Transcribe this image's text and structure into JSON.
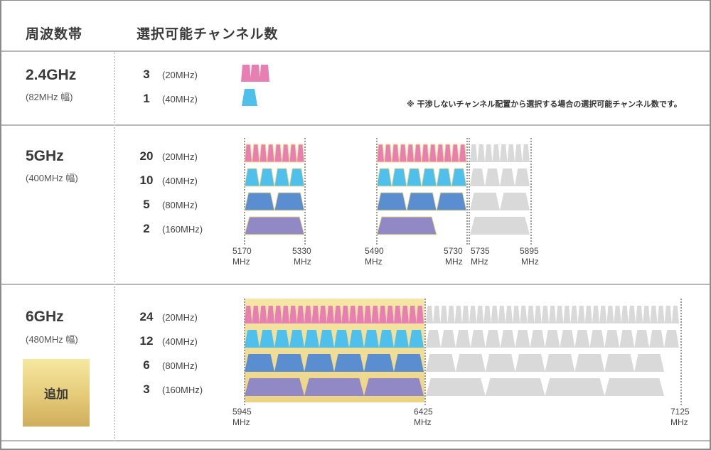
{
  "header": {
    "col_band": "周波数帯",
    "col_channels": "選択可能チャンネル数"
  },
  "note": "※ 干渉しないチャンネル配置から選択する場合の選択可能チャンネル数です。",
  "colors": {
    "ch20": "#e87fb3",
    "ch40": "#4fbfec",
    "ch80": "#5a8ed0",
    "ch160": "#9188c6",
    "unavailable": "#d9d9d9",
    "highlight": "#f3dd93",
    "added_badge": "#e0c470"
  },
  "bands": [
    {
      "name": "2.4GHz",
      "width": "(82MHz 幅)",
      "rows": [
        {
          "count": "3",
          "label": "(20MHz)"
        },
        {
          "count": "1",
          "label": "(40MHz)"
        }
      ]
    },
    {
      "name": "5GHz",
      "width": "(400MHz 幅)",
      "rows": [
        {
          "count": "20",
          "label": "(20MHz)"
        },
        {
          "count": "10",
          "label": "(40MHz)"
        },
        {
          "count": "5",
          "label": "(80MHz)"
        },
        {
          "count": "2",
          "label": "(160MHz)"
        }
      ],
      "axis": [
        {
          "value": "5170",
          "unit": "MHz"
        },
        {
          "value": "5330",
          "unit": "MHz"
        },
        {
          "value": "5490",
          "unit": "MHz"
        },
        {
          "value": "5730",
          "unit": "MHz"
        },
        {
          "value": "5735",
          "unit": "MHz"
        },
        {
          "value": "5895",
          "unit": "MHz"
        }
      ]
    },
    {
      "name": "6GHz",
      "width": "(480MHz 幅)",
      "badge": "追加",
      "rows": [
        {
          "count": "24",
          "label": "(20MHz)"
        },
        {
          "count": "12",
          "label": "(40MHz)"
        },
        {
          "count": "6",
          "label": "(80MHz)"
        },
        {
          "count": "3",
          "label": "(160MHz)"
        }
      ],
      "axis": [
        {
          "value": "5945",
          "unit": "MHz"
        },
        {
          "value": "6425",
          "unit": "MHz"
        },
        {
          "value": "7125",
          "unit": "MHz"
        }
      ]
    }
  ],
  "chart_data": {
    "type": "table",
    "title": "選択可能チャンネル数",
    "columns": [
      "周波数帯",
      "20MHz",
      "40MHz",
      "80MHz",
      "160MHz"
    ],
    "rows": [
      {
        "band": "2.4GHz",
        "bandwidth": "82MHz",
        "20MHz": 3,
        "40MHz": 1
      },
      {
        "band": "5GHz",
        "bandwidth": "400MHz",
        "20MHz": 20,
        "40MHz": 10,
        "80MHz": 5,
        "160MHz": 2,
        "ranges_MHz": [
          [
            5170,
            5330
          ],
          [
            5490,
            5730
          ]
        ],
        "unavailable_range_MHz": [
          5735,
          5895
        ]
      },
      {
        "band": "6GHz",
        "bandwidth": "480MHz",
        "20MHz": 24,
        "40MHz": 12,
        "80MHz": 6,
        "160MHz": 3,
        "range_MHz": [
          5945,
          6425
        ],
        "unavailable_range_MHz": [
          6425,
          7125
        ],
        "tag": "追加"
      }
    ],
    "annotations": [
      "※ 干渉しないチャンネル配置から選択する場合の選択可能チャンネル数です。"
    ]
  }
}
